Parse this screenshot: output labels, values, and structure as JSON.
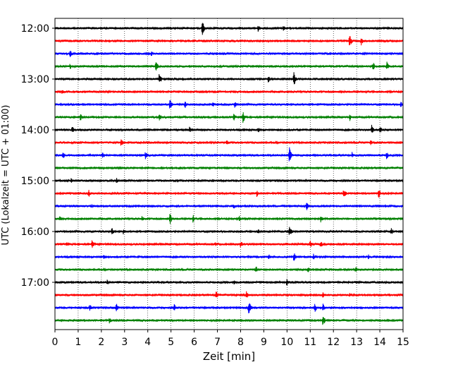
{
  "chart_data": {
    "type": "line",
    "title": "",
    "xlabel": "Zeit  [min]",
    "ylabel": "UTC (Lokalzeit = UTC + 01:00)",
    "xlim": [
      0,
      15
    ],
    "x_ticks": [
      "0",
      "1",
      "2",
      "3",
      "4",
      "5",
      "6",
      "7",
      "8",
      "9",
      "10",
      "11",
      "12",
      "13",
      "14",
      "15"
    ],
    "y_tick_labels": [
      "12:00",
      "13:00",
      "14:00",
      "15:00",
      "16:00",
      "17:00"
    ],
    "grid": "vertical dotted at each minute",
    "colors": [
      "#000000",
      "#ff0000",
      "#0000ff",
      "#008000"
    ],
    "series": [
      {
        "start": "12:00",
        "color": "#000000",
        "events": [
          {
            "t": 6.35,
            "a": 1.0
          },
          {
            "t": 8.75,
            "a": 0.45
          },
          {
            "t": 9.85,
            "a": 0.45
          }
        ]
      },
      {
        "start": "12:15",
        "color": "#ff0000",
        "events": [
          {
            "t": 12.7,
            "a": 0.9
          },
          {
            "t": 13.2,
            "a": 0.6
          }
        ]
      },
      {
        "start": "12:30",
        "color": "#0000ff",
        "events": [
          {
            "t": 0.65,
            "a": 0.5
          },
          {
            "t": 4.15,
            "a": 0.35
          }
        ]
      },
      {
        "start": "12:45",
        "color": "#008000",
        "events": [
          {
            "t": 0.65,
            "a": 0.4
          },
          {
            "t": 4.35,
            "a": 0.7
          },
          {
            "t": 13.7,
            "a": 0.65
          },
          {
            "t": 14.3,
            "a": 0.6
          }
        ]
      },
      {
        "start": "13:00",
        "color": "#000000",
        "events": [
          {
            "t": 4.5,
            "a": 0.8
          },
          {
            "t": 9.2,
            "a": 0.5
          },
          {
            "t": 10.3,
            "a": 1.0
          }
        ]
      },
      {
        "start": "13:15",
        "color": "#ff0000",
        "events": [
          {
            "t": 0.3,
            "a": 0.35
          }
        ]
      },
      {
        "start": "13:30",
        "color": "#0000ff",
        "events": [
          {
            "t": 4.95,
            "a": 0.7
          },
          {
            "t": 5.6,
            "a": 0.55
          },
          {
            "t": 6.8,
            "a": 0.5
          },
          {
            "t": 7.75,
            "a": 0.55
          },
          {
            "t": 14.9,
            "a": 0.4
          }
        ]
      },
      {
        "start": "13:45",
        "color": "#008000",
        "events": [
          {
            "t": 1.1,
            "a": 0.45
          },
          {
            "t": 4.5,
            "a": 0.5
          },
          {
            "t": 7.7,
            "a": 0.5
          },
          {
            "t": 8.1,
            "a": 0.8
          },
          {
            "t": 12.7,
            "a": 0.5
          }
        ]
      },
      {
        "start": "14:00",
        "color": "#000000",
        "events": [
          {
            "t": 0.75,
            "a": 0.6
          },
          {
            "t": 5.8,
            "a": 0.4
          },
          {
            "t": 8.75,
            "a": 0.4
          },
          {
            "t": 13.65,
            "a": 0.6
          },
          {
            "t": 14.0,
            "a": 0.55
          }
        ]
      },
      {
        "start": "14:15",
        "color": "#ff0000",
        "events": [
          {
            "t": 2.85,
            "a": 0.5
          },
          {
            "t": 7.4,
            "a": 0.45
          },
          {
            "t": 13.6,
            "a": 0.4
          }
        ]
      },
      {
        "start": "14:30",
        "color": "#0000ff",
        "events": [
          {
            "t": 0.35,
            "a": 0.5
          },
          {
            "t": 2.05,
            "a": 0.5
          },
          {
            "t": 3.9,
            "a": 0.5
          },
          {
            "t": 10.1,
            "a": 1.0
          },
          {
            "t": 12.8,
            "a": 0.45
          },
          {
            "t": 14.3,
            "a": 0.55
          }
        ]
      },
      {
        "start": "14:45",
        "color": "#008000",
        "events": []
      },
      {
        "start": "15:00",
        "color": "#000000",
        "events": [
          {
            "t": 0.7,
            "a": 0.4
          },
          {
            "t": 2.65,
            "a": 0.4
          }
        ]
      },
      {
        "start": "15:15",
        "color": "#ff0000",
        "events": [
          {
            "t": 1.45,
            "a": 0.55
          },
          {
            "t": 8.7,
            "a": 0.45
          },
          {
            "t": 12.45,
            "a": 0.75
          },
          {
            "t": 13.95,
            "a": 0.65
          }
        ]
      },
      {
        "start": "15:30",
        "color": "#0000ff",
        "events": [
          {
            "t": 1.6,
            "a": 0.3
          },
          {
            "t": 7.7,
            "a": 0.35
          },
          {
            "t": 10.85,
            "a": 0.6
          }
        ]
      },
      {
        "start": "15:45",
        "color": "#008000",
        "events": [
          {
            "t": 0.2,
            "a": 0.4
          },
          {
            "t": 3.75,
            "a": 0.35
          },
          {
            "t": 4.95,
            "a": 0.8
          },
          {
            "t": 5.95,
            "a": 0.5
          },
          {
            "t": 7.95,
            "a": 0.4
          },
          {
            "t": 11.45,
            "a": 0.5
          }
        ]
      },
      {
        "start": "16:00",
        "color": "#000000",
        "events": [
          {
            "t": 2.45,
            "a": 0.55
          },
          {
            "t": 2.95,
            "a": 0.4
          },
          {
            "t": 8.75,
            "a": 0.35
          },
          {
            "t": 10.1,
            "a": 0.75
          },
          {
            "t": 14.5,
            "a": 0.45
          }
        ]
      },
      {
        "start": "16:15",
        "color": "#ff0000",
        "events": [
          {
            "t": 0.5,
            "a": 0.5
          },
          {
            "t": 1.6,
            "a": 0.55
          },
          {
            "t": 6.9,
            "a": 0.3
          },
          {
            "t": 8.0,
            "a": 0.5
          },
          {
            "t": 11.0,
            "a": 0.55
          },
          {
            "t": 11.45,
            "a": 0.5
          }
        ]
      },
      {
        "start": "16:30",
        "color": "#0000ff",
        "events": [
          {
            "t": 2.1,
            "a": 0.35
          },
          {
            "t": 9.2,
            "a": 0.5
          },
          {
            "t": 10.3,
            "a": 0.65
          },
          {
            "t": 11.15,
            "a": 0.5
          },
          {
            "t": 13.5,
            "a": 0.35
          }
        ]
      },
      {
        "start": "16:45",
        "color": "#008000",
        "events": [
          {
            "t": 8.65,
            "a": 0.55
          },
          {
            "t": 10.9,
            "a": 0.4
          },
          {
            "t": 12.95,
            "a": 0.45
          }
        ]
      },
      {
        "start": "17:00",
        "color": "#000000",
        "events": [
          {
            "t": 2.25,
            "a": 0.4
          },
          {
            "t": 7.7,
            "a": 0.35
          },
          {
            "t": 10.0,
            "a": 0.6
          }
        ]
      },
      {
        "start": "17:15",
        "color": "#ff0000",
        "events": [
          {
            "t": 6.95,
            "a": 0.55
          },
          {
            "t": 8.25,
            "a": 0.6
          },
          {
            "t": 11.55,
            "a": 0.45
          },
          {
            "t": 12.7,
            "a": 0.3
          }
        ]
      },
      {
        "start": "17:30",
        "color": "#0000ff",
        "events": [
          {
            "t": 1.5,
            "a": 0.5
          },
          {
            "t": 2.65,
            "a": 0.55
          },
          {
            "t": 5.15,
            "a": 0.55
          },
          {
            "t": 8.35,
            "a": 0.9
          },
          {
            "t": 11.2,
            "a": 0.6
          },
          {
            "t": 11.55,
            "a": 0.5
          }
        ]
      },
      {
        "start": "17:45",
        "color": "#008000",
        "events": [
          {
            "t": 2.35,
            "a": 0.45
          },
          {
            "t": 11.55,
            "a": 0.8
          }
        ]
      }
    ]
  }
}
